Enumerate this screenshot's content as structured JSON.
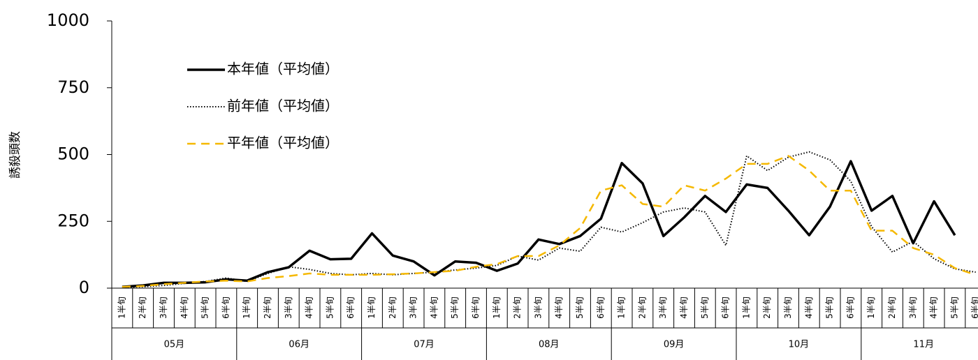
{
  "chart_data": {
    "type": "line",
    "y_label": "誘殺頭数",
    "categories": [
      "1半旬",
      "2半旬",
      "3半旬",
      "4半旬",
      "5半旬",
      "6半旬",
      "1半旬",
      "2半旬",
      "3半旬",
      "4半旬",
      "5半旬",
      "6半旬",
      "1半旬",
      "2半旬",
      "3半旬",
      "4半旬",
      "5半旬",
      "6半旬",
      "1半旬",
      "2半旬",
      "3半旬",
      "4半旬",
      "5半旬",
      "6半旬",
      "1半旬",
      "2半旬",
      "3半旬",
      "4半旬",
      "5半旬",
      "6半旬",
      "1半旬",
      "2半旬",
      "3半旬",
      "4半旬",
      "5半旬",
      "6半旬",
      "1半旬",
      "2半旬",
      "3半旬",
      "4半旬",
      "5半旬",
      "6半旬"
    ],
    "months": [
      "05月",
      "06月",
      "07月",
      "08月",
      "09月",
      "10月",
      "11月"
    ],
    "ylim": [
      0,
      1000
    ],
    "yticks": [
      0,
      250,
      500,
      750,
      1000
    ],
    "grid": false,
    "legend": "upper left",
    "series": [
      {
        "name": "本年値（平均値）",
        "color": "#000000",
        "style": "solid",
        "values": [
          5,
          10,
          20,
          20,
          22,
          33,
          28,
          60,
          78,
          140,
          108,
          110,
          205,
          122,
          100,
          48,
          100,
          95,
          65,
          92,
          182,
          165,
          195,
          260,
          468,
          392,
          195,
          265,
          345,
          285,
          388,
          375,
          290,
          198,
          305,
          475,
          290,
          345,
          168,
          325,
          198,
          null
        ]
      },
      {
        "name": "前年値（平均値）",
        "color": "#000000",
        "style": "dotted",
        "values": [
          3,
          5,
          10,
          18,
          25,
          38,
          25,
          55,
          80,
          70,
          55,
          50,
          55,
          50,
          55,
          60,
          68,
          75,
          85,
          120,
          105,
          150,
          138,
          228,
          210,
          245,
          285,
          300,
          285,
          160,
          495,
          440,
          490,
          510,
          480,
          400,
          230,
          135,
          175,
          110,
          72,
          60
        ]
      },
      {
        "name": "平年値（平均値）",
        "color": "#f5b800",
        "style": "dashed",
        "values": [
          5,
          8,
          15,
          20,
          25,
          28,
          25,
          38,
          45,
          55,
          50,
          50,
          50,
          52,
          55,
          60,
          65,
          80,
          90,
          120,
          120,
          160,
          225,
          365,
          385,
          315,
          305,
          385,
          365,
          410,
          465,
          465,
          495,
          440,
          365,
          365,
          215,
          215,
          150,
          125,
          75,
          50
        ]
      }
    ]
  }
}
